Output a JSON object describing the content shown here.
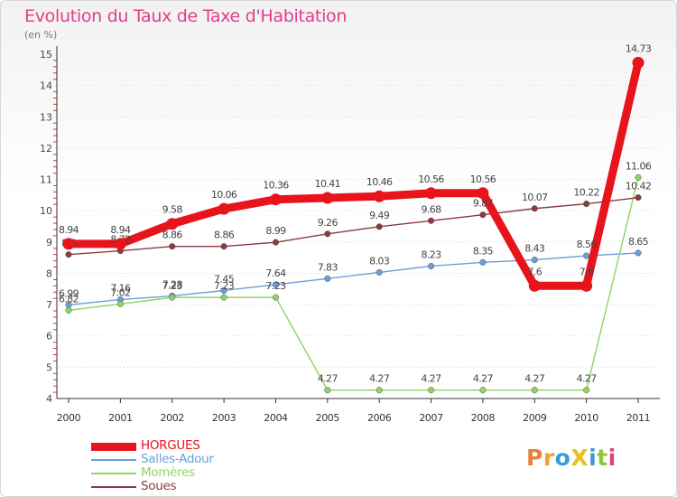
{
  "title": "Evolution du Taux de Taxe d'Habitation",
  "subtitle": "(en %)",
  "logo": {
    "text": "ProXiti",
    "letter_colors": [
      "#e8813a",
      "#f0a030",
      "#3a9ad8",
      "#e8c020",
      "#3a9ad8",
      "#8cc63e",
      "#e04080"
    ]
  },
  "chart_data": {
    "type": "line",
    "title": "Evolution du Taux de Taxe d'Habitation",
    "subtitle": "(en %)",
    "xlabel": "",
    "ylabel": "",
    "x": [
      "2000",
      "2001",
      "2002",
      "2003",
      "2004",
      "2005",
      "2006",
      "2007",
      "2008",
      "2009",
      "2010",
      "2011"
    ],
    "ylim": [
      4,
      15
    ],
    "yticks": [
      "4",
      "5",
      "6",
      "7",
      "8",
      "9",
      "10",
      "11",
      "12",
      "13",
      "14",
      "15"
    ],
    "grid": "horizontal dotted",
    "legend_position": "bottom-left",
    "series": [
      {
        "name": "HORGUES",
        "color": "#e8141b",
        "values": [
          8.94,
          8.94,
          9.58,
          10.06,
          10.36,
          10.41,
          10.46,
          10.56,
          10.56,
          7.6,
          7.6,
          14.73
        ],
        "labels": [
          "8.94",
          "8.94",
          "9.58",
          "10.06",
          "10.36",
          "10.41",
          "10.46",
          "10.56",
          "10.56",
          "7.6",
          "7.6",
          "14.73"
        ]
      },
      {
        "name": "Salles-Adour",
        "color": "#6aa0d8",
        "values": [
          6.99,
          7.16,
          7.28,
          7.45,
          7.64,
          7.83,
          8.03,
          8.23,
          8.35,
          8.43,
          8.56,
          8.65
        ],
        "labels": [
          "6.99",
          "7.16",
          "7.28",
          "7.45",
          "7.64",
          "7.83",
          "8.03",
          "8.23",
          "8.35",
          "8.43",
          "8.56",
          "8.65"
        ]
      },
      {
        "name": "Momères",
        "color": "#8ed462",
        "values": [
          6.82,
          7.02,
          7.23,
          7.23,
          7.23,
          4.27,
          4.27,
          4.27,
          4.27,
          4.27,
          4.27,
          11.06
        ],
        "labels": [
          "6.82",
          "7.02",
          "7.23",
          "7.23",
          "7.23",
          "4.27",
          "4.27",
          "4.27",
          "4.27",
          "4.27",
          "4.27",
          "11.06"
        ]
      },
      {
        "name": "Soues",
        "color": "#8c3a40",
        "values": [
          8.6,
          8.72,
          8.86,
          8.86,
          8.99,
          9.26,
          9.49,
          9.68,
          9.87,
          10.07,
          10.22,
          10.42
        ],
        "labels": [
          "8.6",
          "8.72",
          "8.86",
          "8.86",
          "8.99",
          "9.26",
          "9.49",
          "9.68",
          "9.87",
          "10.07",
          "10.22",
          "10.42"
        ]
      }
    ]
  }
}
